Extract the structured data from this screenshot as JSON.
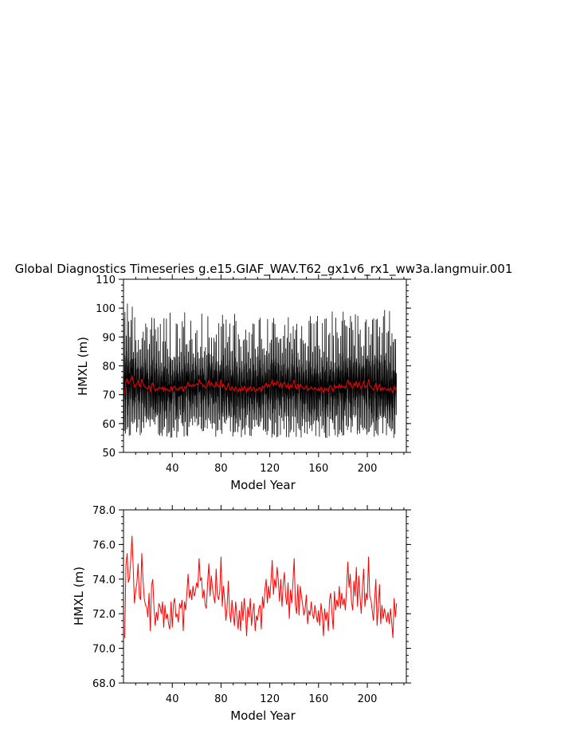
{
  "title": "Global Diagnostics Timeseries g.e15.GIAF_WAV.T62_gx1v6_rx1_ww3a.langmuir.001",
  "colors": {
    "monthly": "#000000",
    "annual": "#ff0000",
    "axes": "#000000",
    "background": "#ffffff"
  },
  "chart_data": [
    {
      "type": "line",
      "xlabel": "Model Year",
      "ylabel": "HMXL (m)",
      "xlim": [
        0,
        232
      ],
      "ylim": [
        50,
        110
      ],
      "xticks": [
        40,
        80,
        120,
        160,
        200
      ],
      "xtick_labels": [
        "40",
        "80",
        "120",
        "160",
        "200"
      ],
      "yticks": [
        50,
        60,
        70,
        80,
        90,
        100,
        110
      ],
      "ytick_labels": [
        "50",
        "60",
        "70",
        "80",
        "90",
        "100",
        "110"
      ],
      "grid": false,
      "series": [
        {
          "description_key": "monthly",
          "color": "#000000",
          "cycle": "seasonal cycle each model year, approx min 56-62 m, max 85-97 m",
          "range_per_year": {
            "min_range": [
              55,
              63
            ],
            "max_range": [
              84,
              100
            ]
          }
        },
        {
          "description_key": "annual",
          "color": "#ff0000",
          "values_ref": "annual_mean"
        }
      ]
    },
    {
      "type": "line",
      "xlabel": "Model Year",
      "ylabel": "HMXL (m)",
      "xlim": [
        0,
        232
      ],
      "ylim": [
        68.0,
        78.0
      ],
      "xticks": [
        40,
        80,
        120,
        160,
        200
      ],
      "xtick_labels": [
        "40",
        "80",
        "120",
        "160",
        "200"
      ],
      "yticks": [
        68,
        70,
        72,
        74,
        76,
        78
      ],
      "ytick_labels": [
        "68.0",
        "70.0",
        "72.0",
        "74.0",
        "76.0",
        "78.0"
      ],
      "grid": false,
      "series": [
        {
          "description_key": "annual",
          "color": "#ff0000",
          "values_ref": "annual_mean"
        }
      ]
    }
  ],
  "annual_mean": {
    "x_start": 1,
    "x_step": 1,
    "values": [
      70.6,
      74.8,
      75.5,
      73.8,
      74.1,
      75.2,
      76.5,
      74.6,
      72.6,
      73.3,
      73.8,
      74.9,
      73.0,
      72.8,
      75.5,
      74.0,
      72.9,
      72.5,
      72.4,
      71.8,
      73.2,
      71.0,
      73.6,
      74.0,
      72.4,
      71.3,
      72.1,
      71.6,
      72.6,
      72.4,
      72.0,
      72.7,
      71.2,
      72.5,
      71.7,
      72.0,
      71.4,
      71.1,
      72.7,
      71.2,
      72.6,
      72.9,
      71.8,
      72.0,
      71.5,
      72.6,
      72.3,
      72.8,
      71.0,
      72.7,
      72.2,
      73.2,
      74.3,
      72.9,
      73.4,
      72.8,
      73.6,
      73.0,
      73.3,
      73.8,
      73.5,
      75.2,
      73.9,
      74.1,
      72.9,
      73.4,
      72.5,
      72.3,
      73.8,
      74.9,
      73.0,
      74.2,
      73.5,
      73.0,
      72.6,
      74.6,
      73.1,
      72.8,
      73.3,
      75.3,
      72.4,
      73.6,
      72.8,
      71.6,
      72.4,
      73.9,
      72.1,
      71.5,
      72.8,
      72.0,
      71.3,
      72.7,
      71.9,
      71.1,
      72.2,
      71.0,
      72.7,
      71.6,
      72.9,
      72.1,
      70.7,
      72.4,
      71.8,
      72.9,
      71.3,
      72.1,
      72.6,
      71.0,
      71.9,
      71.6,
      72.3,
      72.5,
      71.1,
      73.0,
      72.3,
      73.4,
      74.0,
      72.6,
      73.6,
      72.9,
      73.9,
      75.1,
      73.1,
      74.0,
      73.5,
      74.7,
      73.9,
      72.7,
      74.0,
      72.4,
      73.7,
      74.4,
      73.0,
      72.5,
      73.8,
      71.7,
      73.4,
      72.6,
      73.8,
      75.2,
      72.5,
      72.0,
      73.7,
      71.9,
      73.6,
      73.0,
      72.5,
      71.9,
      72.3,
      73.1,
      71.4,
      72.2,
      71.9,
      72.7,
      72.0,
      71.7,
      72.5,
      72.0,
      71.5,
      72.2,
      71.3,
      72.6,
      72.0,
      70.7,
      72.3,
      71.6,
      72.1,
      71.0,
      72.8,
      73.2,
      72.0,
      71.1,
      73.3,
      72.2,
      72.8,
      72.4,
      73.6,
      72.3,
      73.2,
      72.5,
      72.9,
      72.2,
      73.5,
      75.0,
      73.5,
      74.3,
      72.7,
      72.2,
      73.9,
      73.0,
      74.7,
      72.4,
      74.2,
      73.0,
      72.0,
      73.5,
      74.6,
      72.4,
      73.2,
      72.8,
      75.3,
      73.0,
      72.8,
      72.2,
      71.6,
      72.8,
      74.0,
      71.3,
      72.4,
      73.7,
      71.4,
      72.5,
      71.7,
      72.3,
      71.9,
      71.5,
      72.1,
      71.4,
      72.3,
      71.5,
      70.6,
      72.9,
      71.8,
      72.6
    ]
  }
}
